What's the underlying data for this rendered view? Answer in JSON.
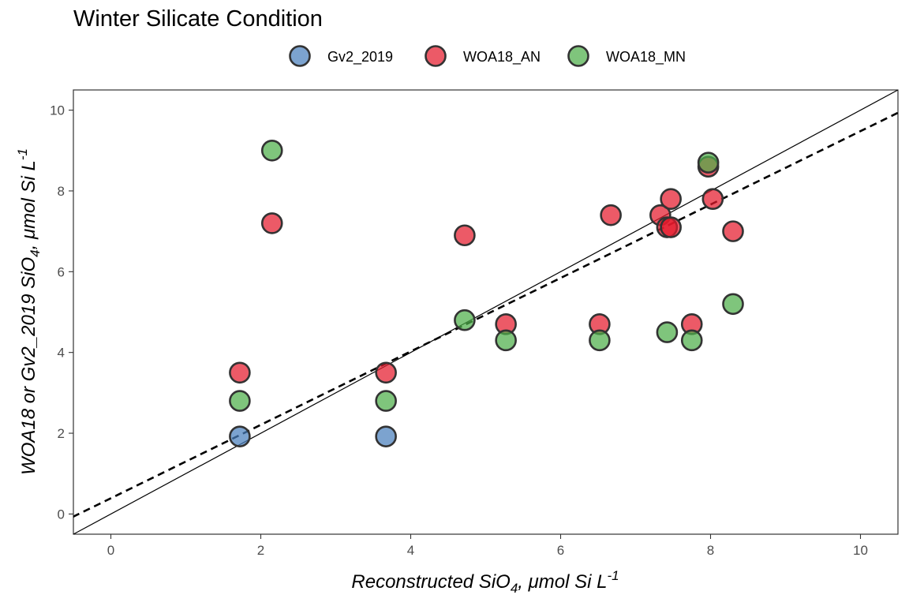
{
  "chart_data": {
    "type": "scatter",
    "title": "Winter Silicate Condition",
    "xlabel": "Reconstructed SiO4, μmol Si L-1",
    "ylabel": "WOA18 or Gv2_2019 SiO4, μmol Si L-1",
    "xlabel_parts": {
      "main": "Reconstructed SiO",
      "sub": "4",
      "tail": ", μmol Si L",
      "sup": "-1"
    },
    "ylabel_parts": {
      "main": "WOA18 or Gv2_2019 SiO",
      "sub": "4",
      "tail": ", μmol Si L",
      "sup": "-1"
    },
    "xlim": [
      -0.5,
      10.5
    ],
    "ylim": [
      -0.5,
      10.5
    ],
    "xticks": [
      "0",
      "2",
      "4",
      "6",
      "8",
      "10"
    ],
    "yticks": [
      "0",
      "2",
      "4",
      "6",
      "8",
      "10"
    ],
    "grid": false,
    "legend_position": "top",
    "series": [
      {
        "name": "Gv2_2019",
        "color": "#4a7fbd",
        "points": [
          [
            1.72,
            1.92
          ],
          [
            3.67,
            1.92
          ]
        ]
      },
      {
        "name": "WOA18_AN",
        "color": "#e41a2c",
        "points": [
          [
            1.72,
            3.5
          ],
          [
            2.15,
            7.2
          ],
          [
            3.67,
            3.5
          ],
          [
            4.72,
            6.9
          ],
          [
            5.27,
            4.7
          ],
          [
            6.52,
            4.7
          ],
          [
            6.67,
            7.4
          ],
          [
            7.33,
            7.4
          ],
          [
            7.42,
            7.1
          ],
          [
            7.47,
            7.1
          ],
          [
            7.47,
            7.8
          ],
          [
            7.75,
            4.7
          ],
          [
            7.97,
            8.6
          ],
          [
            8.03,
            7.8
          ],
          [
            8.3,
            7.0
          ]
        ]
      },
      {
        "name": "WOA18_MN",
        "color": "#4daf4a",
        "points": [
          [
            1.72,
            2.8
          ],
          [
            2.15,
            9.0
          ],
          [
            3.67,
            2.8
          ],
          [
            4.72,
            4.8
          ],
          [
            5.27,
            4.3
          ],
          [
            6.52,
            4.3
          ],
          [
            7.42,
            4.5
          ],
          [
            7.75,
            4.3
          ],
          [
            7.97,
            8.7
          ],
          [
            8.3,
            5.2
          ]
        ]
      }
    ],
    "reference_lines": [
      {
        "type": "identity",
        "style": "solid",
        "slope": 1,
        "intercept": 0
      },
      {
        "type": "regression",
        "style": "dashed",
        "slope": 0.909,
        "intercept": 0.39
      }
    ]
  }
}
